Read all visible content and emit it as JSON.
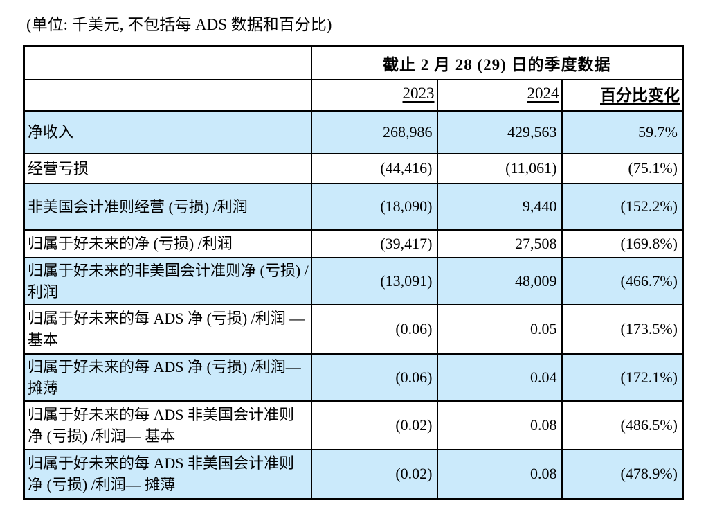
{
  "caption": "(单位: 千美元, 不包括每 ADS 数据和百分比)",
  "table": {
    "header_title": "截止 2 月 28 (29)  日的季度数据",
    "columns": [
      "2023",
      "2024",
      "百分比变化"
    ],
    "highlight_color": "#cbeafb",
    "rows": [
      {
        "label": "净收入",
        "v2023": "268,986",
        "v2024": "429,563",
        "pct": "59.7%",
        "highlight": true
      },
      {
        "label": "经营亏损",
        "v2023": "(44,416)",
        "v2024": "(11,061)",
        "pct": "(75.1%)",
        "highlight": false
      },
      {
        "label": "非美国会计准则经营 (亏损) /利润",
        "v2023": "(18,090)",
        "v2024": "9,440",
        "pct": "(152.2%)",
        "highlight": true
      },
      {
        "label": "归属于好未来的净 (亏损) /利润",
        "v2023": "(39,417)",
        "v2024": "27,508",
        "pct": "(169.8%)",
        "highlight": false
      },
      {
        "label": "归属于好未来的非美国会计准则净 (亏损) /利润",
        "v2023": "(13,091)",
        "v2024": "48,009",
        "pct": "(466.7%)",
        "highlight": true
      },
      {
        "label": "归属于好未来的每 ADS 净 (亏损) /利润 — 基本",
        "v2023": "(0.06)",
        "v2024": "0.05",
        "pct": "(173.5%)",
        "highlight": false
      },
      {
        "label": "归属于好未来的每 ADS 净 (亏损) /利润— 摊薄",
        "v2023": "(0.06)",
        "v2024": "0.04",
        "pct": "(172.1%)",
        "highlight": true
      },
      {
        "label": "归属于好未来的每 ADS 非美国会计准则净 (亏损) /利润— 基本",
        "v2023": "(0.02)",
        "v2024": "0.08",
        "pct": "(486.5%)",
        "highlight": false
      },
      {
        "label": "归属于好未来的每 ADS 非美国会计准则净 (亏损) /利润— 摊薄",
        "v2023": "(0.02)",
        "v2024": "0.08",
        "pct": "(478.9%)",
        "highlight": true
      }
    ]
  }
}
